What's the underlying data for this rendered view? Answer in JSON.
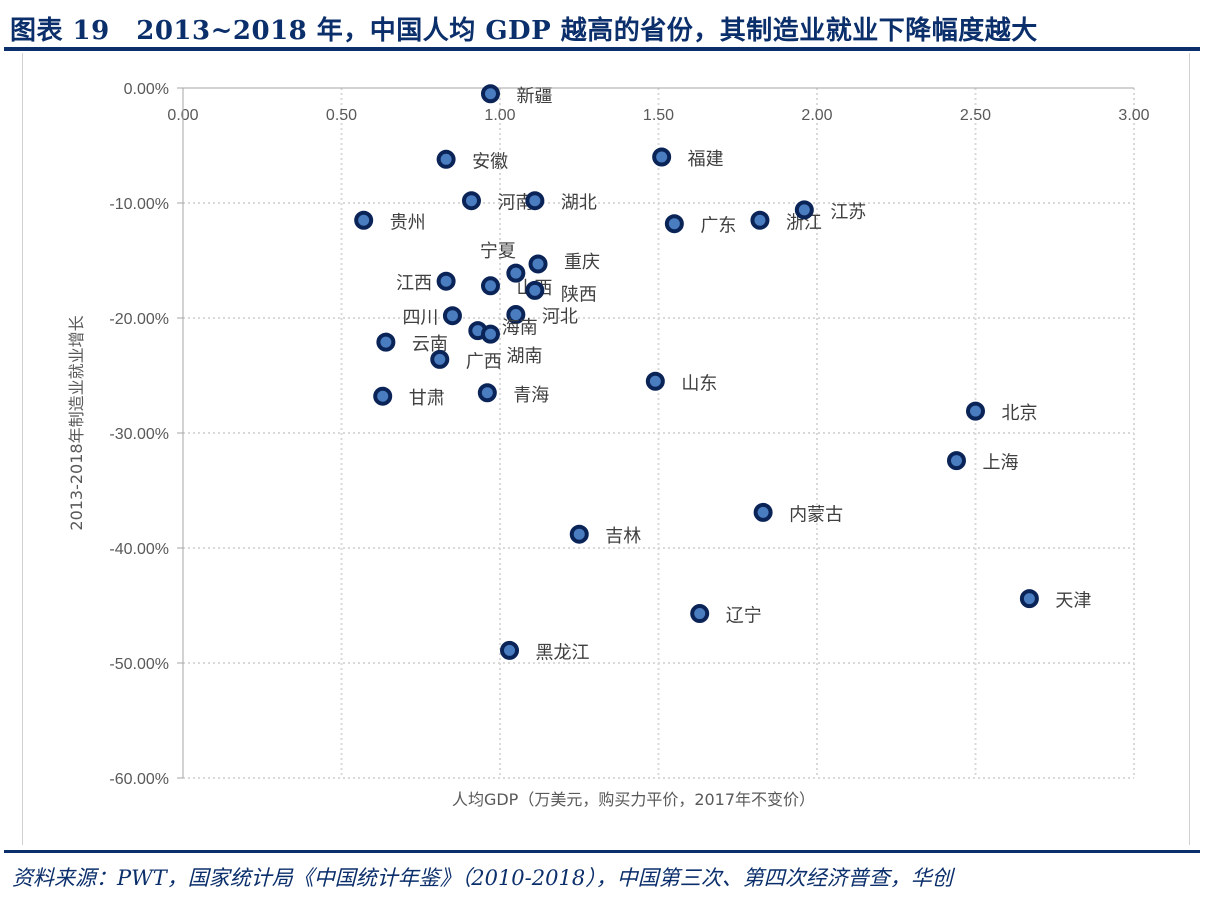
{
  "header": {
    "title": "图表 19　2013~2018 年，中国人均 GDP 越高的省份，其制造业就业下降幅度越大"
  },
  "footer": {
    "source": "资料来源：PWT，国家统计局《中国统计年鉴》（2010-2018），中国第三次、第四次经济普查，华创"
  },
  "chart_data": {
    "type": "scatter",
    "title": "",
    "xlabel": "人均GDP（万美元，购买力平价，2017年不变价）",
    "ylabel": "2013-2018年制造业就业增长",
    "xlim": [
      0,
      3
    ],
    "ylim": [
      -60,
      0
    ],
    "x_ticks": [
      "0.00",
      "0.50",
      "1.00",
      "1.50",
      "2.00",
      "2.50",
      "3.00"
    ],
    "y_ticks": [
      "0.00%",
      "-10.00%",
      "-20.00%",
      "-30.00%",
      "-40.00%",
      "-50.00%",
      "-60.00%"
    ],
    "grid": true,
    "x_axis_position": "top",
    "marker_color": "#4a7cc0",
    "marker_edge_color": "#0b2458",
    "points": [
      {
        "label": "新疆",
        "x": 0.97,
        "y": -0.5
      },
      {
        "label": "安徽",
        "x": 0.83,
        "y": -6.2
      },
      {
        "label": "福建",
        "x": 1.51,
        "y": -6.0
      },
      {
        "label": "河南",
        "x": 0.91,
        "y": -9.8
      },
      {
        "label": "湖北",
        "x": 1.11,
        "y": -9.8
      },
      {
        "label": "贵州",
        "x": 0.57,
        "y": -11.5
      },
      {
        "label": "广东",
        "x": 1.55,
        "y": -11.8
      },
      {
        "label": "浙江",
        "x": 1.82,
        "y": -11.5
      },
      {
        "label": "江苏",
        "x": 1.96,
        "y": -10.6
      },
      {
        "label": "重庆",
        "x": 1.12,
        "y": -15.3
      },
      {
        "label": "宁夏",
        "x": 1.05,
        "y": -16.1
      },
      {
        "label": "江西",
        "x": 0.83,
        "y": -16.8
      },
      {
        "label": "山西",
        "x": 0.97,
        "y": -17.2
      },
      {
        "label": "陕西",
        "x": 1.11,
        "y": -17.6
      },
      {
        "label": "四川",
        "x": 0.85,
        "y": -19.8
      },
      {
        "label": "河北",
        "x": 1.05,
        "y": -19.7
      },
      {
        "label": "海南",
        "x": 0.93,
        "y": -21.1
      },
      {
        "label": "湖南",
        "x": 0.97,
        "y": -21.4
      },
      {
        "label": "云南",
        "x": 0.64,
        "y": -22.1
      },
      {
        "label": "广西",
        "x": 0.81,
        "y": -23.6
      },
      {
        "label": "山东",
        "x": 1.49,
        "y": -25.5
      },
      {
        "label": "甘肃",
        "x": 0.63,
        "y": -26.8
      },
      {
        "label": "青海",
        "x": 0.96,
        "y": -26.5
      },
      {
        "label": "北京",
        "x": 2.5,
        "y": -28.1
      },
      {
        "label": "上海",
        "x": 2.44,
        "y": -32.4
      },
      {
        "label": "内蒙古",
        "x": 1.83,
        "y": -36.9
      },
      {
        "label": "吉林",
        "x": 1.25,
        "y": -38.8
      },
      {
        "label": "辽宁",
        "x": 1.63,
        "y": -45.7
      },
      {
        "label": "天津",
        "x": 2.67,
        "y": -44.4
      },
      {
        "label": "黑龙江",
        "x": 1.03,
        "y": -48.9
      }
    ]
  }
}
